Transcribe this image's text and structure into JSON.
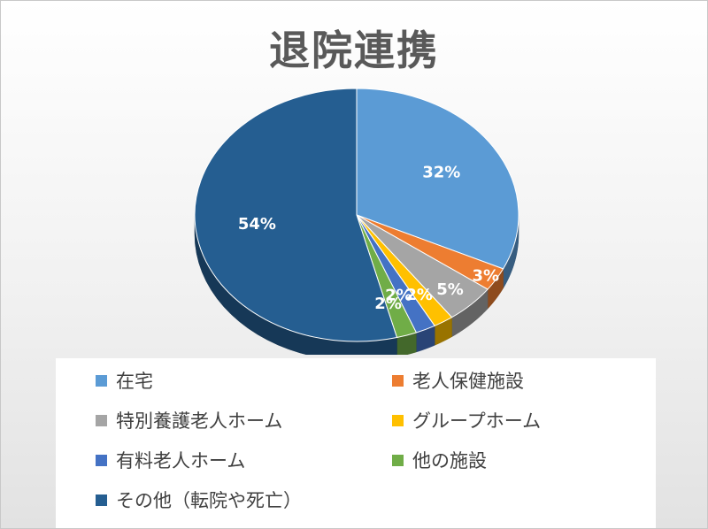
{
  "chart_data": {
    "type": "pie",
    "title": "退院連携",
    "categories": [
      "在宅",
      "老人保健施設",
      "特別養護老人ホーム",
      "グループホーム",
      "有料老人ホーム",
      "他の施設",
      "その他（転院や死亡）"
    ],
    "values": [
      32,
      3,
      5,
      2,
      2,
      2,
      54
    ],
    "data_labels": [
      "32%",
      "3%",
      "5%",
      "2%",
      "2%",
      "2%",
      "54%"
    ],
    "colors": [
      "#5B9BD5",
      "#ED7D31",
      "#A5A5A5",
      "#FFC000",
      "#4472C4",
      "#70AD47",
      "#255E91"
    ],
    "legend": "bottom",
    "style": "3d"
  }
}
